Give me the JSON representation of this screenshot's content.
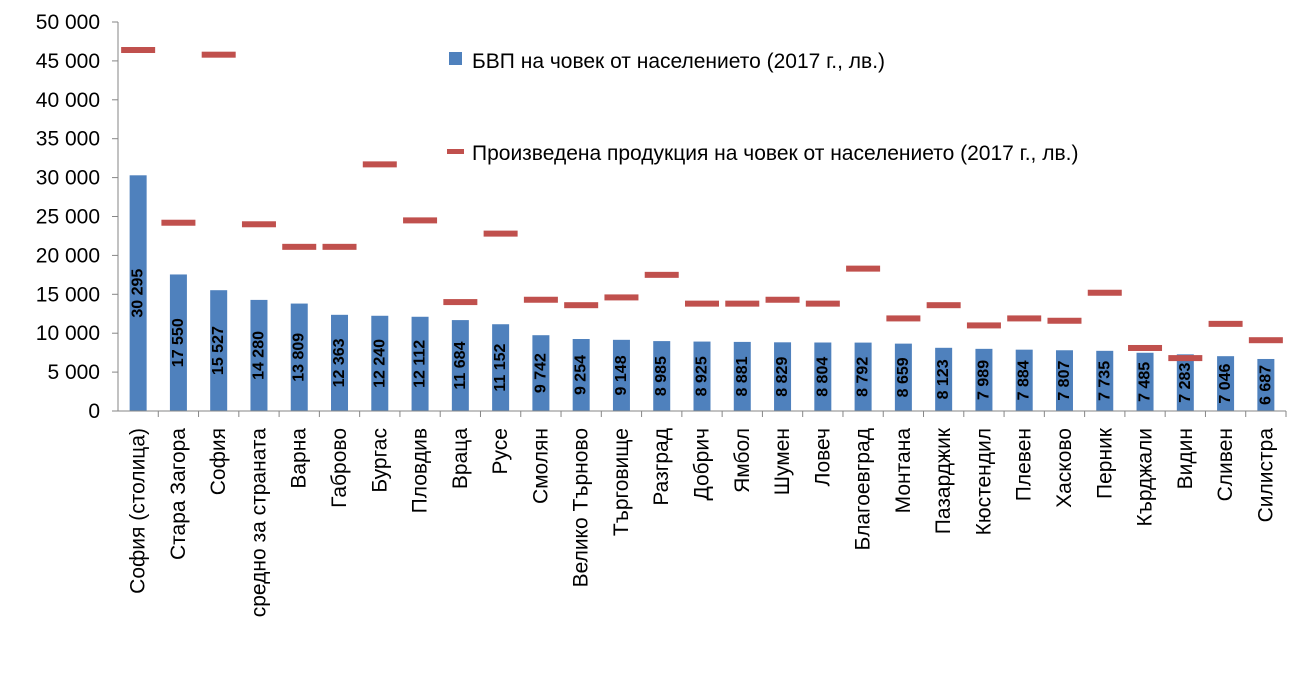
{
  "chart_data": {
    "type": "bar",
    "title": "",
    "xlabel": "",
    "ylabel": "",
    "ylim": [
      0,
      50000
    ],
    "yticks": [
      "0",
      "5 000",
      "10 000",
      "15 000",
      "20 000",
      "25 000",
      "30 000",
      "35 000",
      "40 000",
      "45 000",
      "50 000"
    ],
    "legend_position": "top-right",
    "grid": false,
    "categories": [
      "София (столица)",
      "Стара Загора",
      "София",
      "средно за страната",
      "Варна",
      "Габрово",
      "Бургас",
      "Пловдив",
      "Враца",
      "Русе",
      "Смолян",
      "Велико Търново",
      "Търговище",
      "Разград",
      "Добрич",
      "Ямбол",
      "Шумен",
      "Ловеч",
      "Благоевград",
      "Монтана",
      "Пазарджик",
      "Кюстендил",
      "Плевен",
      "Хасково",
      "Перник",
      "Кърджали",
      "Видин",
      "Сливен",
      "Силистра"
    ],
    "series": [
      {
        "name": "БВП на човек от населението (2017 г., лв.)",
        "kind": "bar",
        "color": "#4F81BD",
        "values": [
          30295,
          17550,
          15527,
          14280,
          13809,
          12363,
          12240,
          12112,
          11684,
          11152,
          9742,
          9254,
          9148,
          8985,
          8925,
          8881,
          8829,
          8804,
          8792,
          8659,
          8123,
          7989,
          7884,
          7807,
          7735,
          7485,
          7283,
          7046,
          6687
        ],
        "labels": [
          "30 295",
          "17 550",
          "15 527",
          "14 280",
          "13 809",
          "12 363",
          "12 240",
          "12 112",
          "11 684",
          "11 152",
          "9 742",
          "9 254",
          "9 148",
          "8 985",
          "8 925",
          "8 881",
          "8 829",
          "8 804",
          "8 792",
          "8 659",
          "8 123",
          "7 989",
          "7 884",
          "7 807",
          "7 735",
          "7 485",
          "7 283",
          "7 046",
          "6 687"
        ]
      },
      {
        "name": "Произведена продукция на човек от населението (2017 г., лв.)",
        "kind": "marker-dash",
        "color": "#C0504D",
        "values": [
          46400,
          24200,
          45800,
          24000,
          21100,
          21100,
          31700,
          24500,
          14000,
          22800,
          14300,
          13600,
          14600,
          17500,
          13800,
          13800,
          14300,
          13800,
          18300,
          11900,
          13600,
          11000,
          11900,
          11600,
          15200,
          8100,
          6800,
          11200,
          9100
        ]
      }
    ]
  }
}
